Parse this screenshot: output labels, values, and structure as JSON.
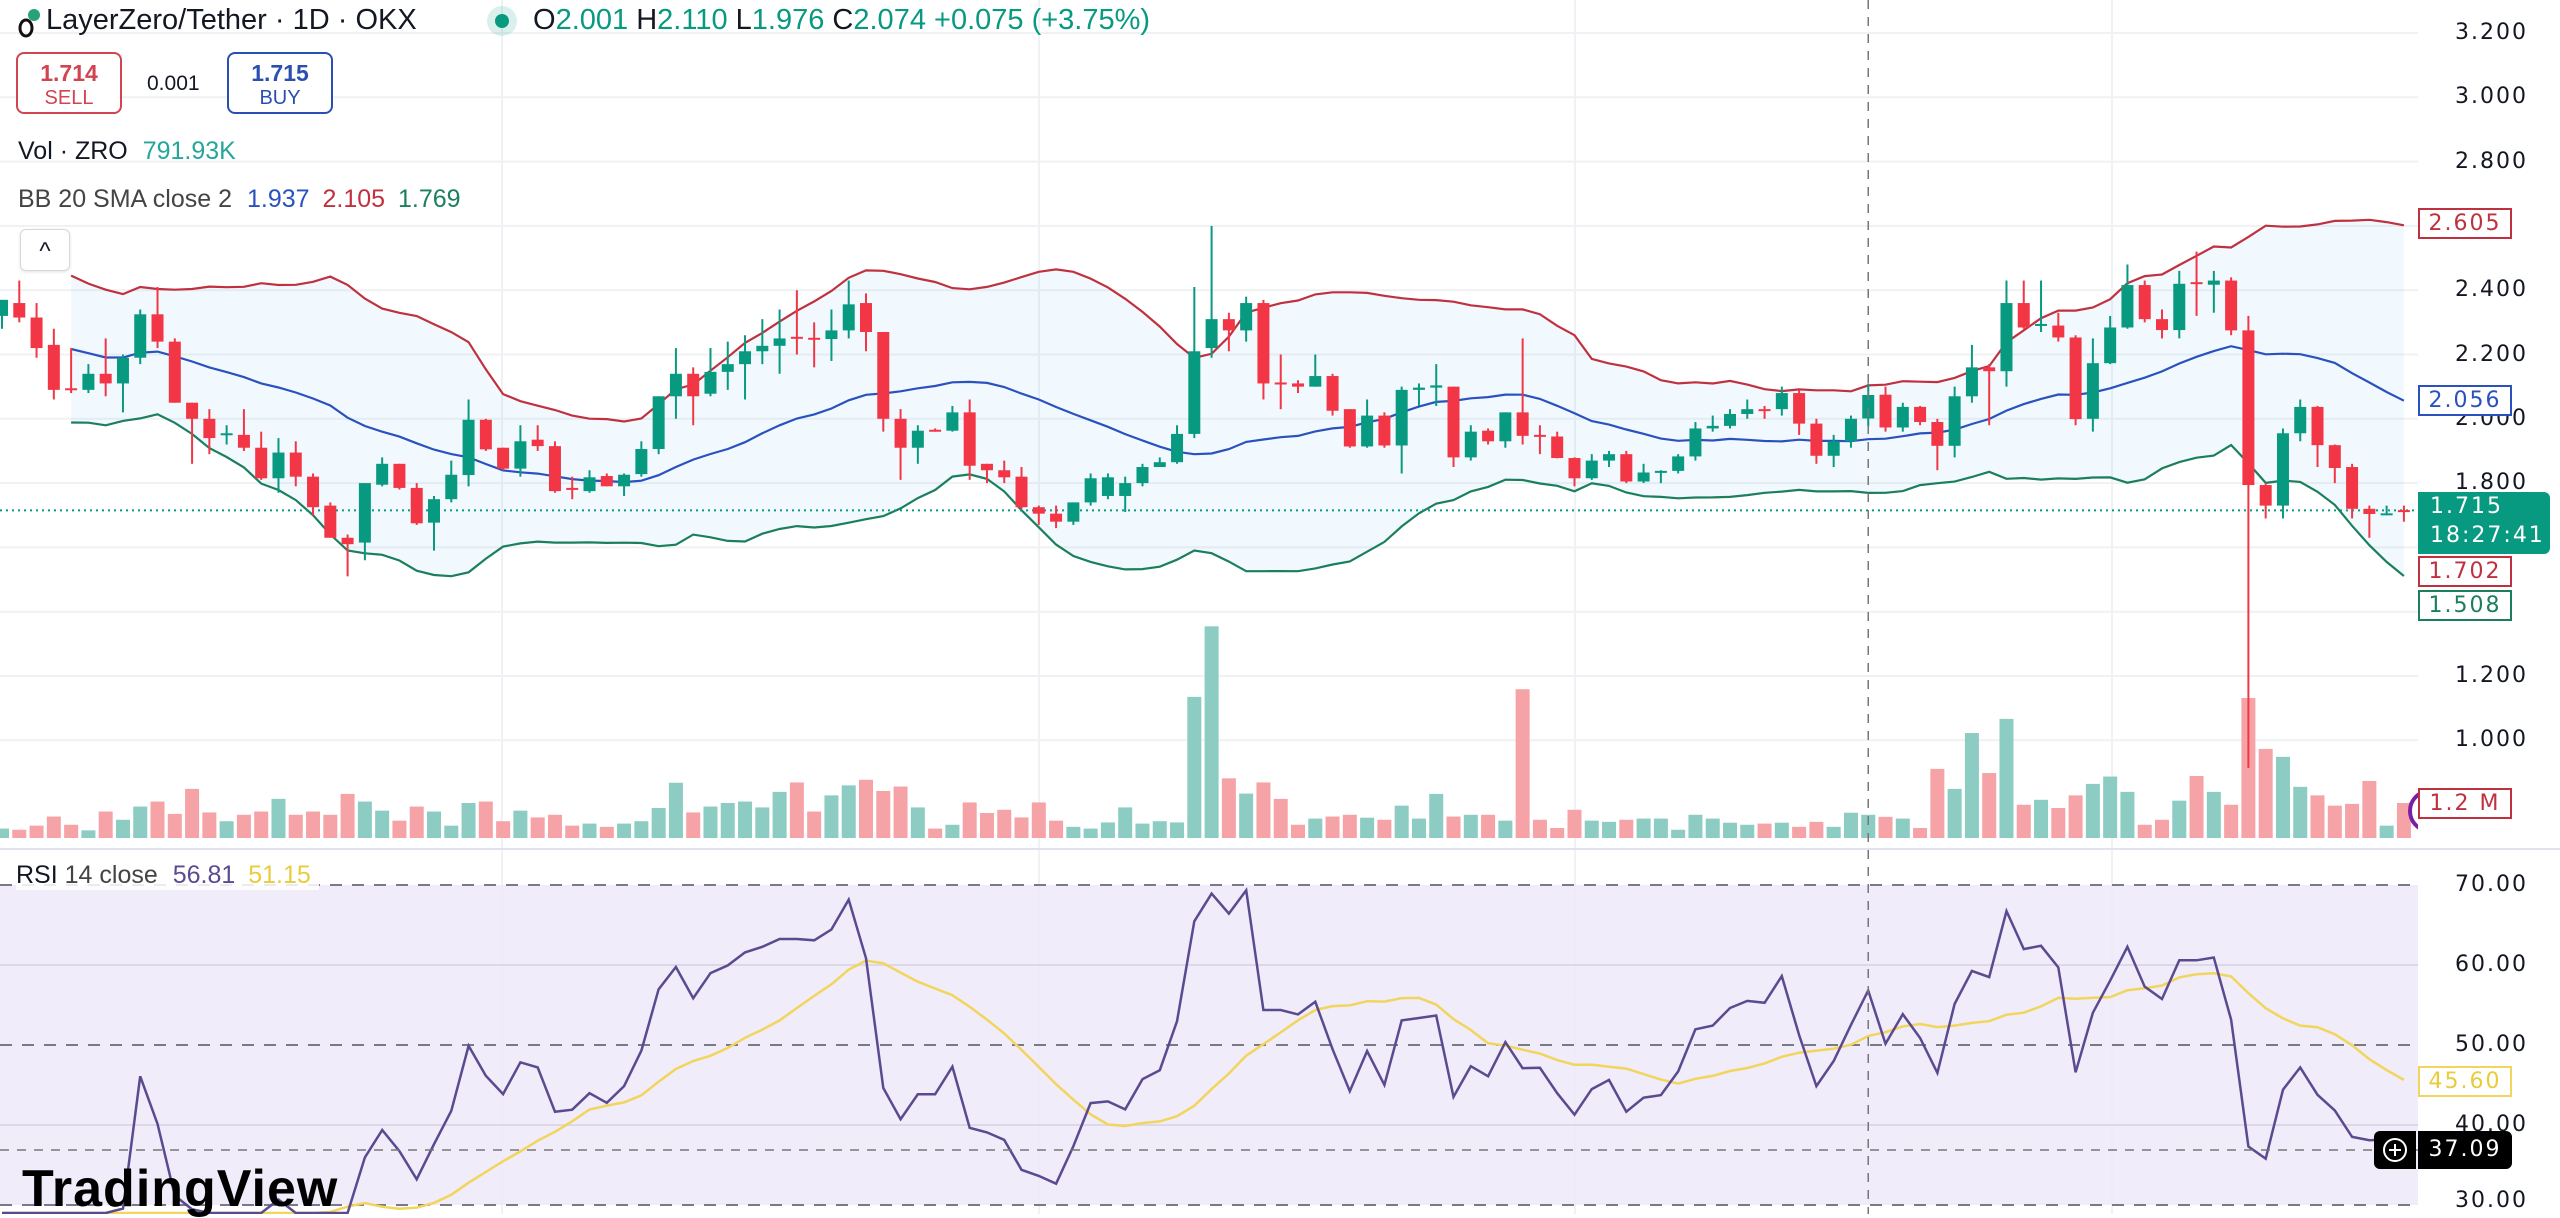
{
  "header": {
    "symbol_title": "LayerZero/Tether · 1D · OKX",
    "ohlc": {
      "o_label": "O",
      "o": "2.001",
      "h_label": "H",
      "h": "2.110",
      "l_label": "L",
      "l": "1.976",
      "c_label": "C",
      "c": "2.074",
      "change": "+0.075 (+3.75%)"
    }
  },
  "trade": {
    "sell_price": "1.714",
    "sell_label": "SELL",
    "spread": "0.001",
    "buy_price": "1.715",
    "buy_label": "BUY"
  },
  "legends": {
    "vol_label": "Vol · ZRO",
    "vol_value": "791.93K",
    "bb_label": "BB 20 SMA close 2",
    "bb_basis": "1.937",
    "bb_upper": "2.105",
    "bb_lower": "1.769",
    "rsi_label": "RSI",
    "rsi_params": "14 close",
    "rsi_value": "56.81",
    "rsi_ma_value": "51.15"
  },
  "collapse_glyph": "^",
  "watermark": "TradingView",
  "colors": {
    "up": "#089981",
    "down": "#f23645",
    "vol_up": "#8cccc2",
    "vol_down": "#f5a3a6",
    "bb_basis": "#2a52be",
    "bb_upper": "#c0313f",
    "bb_lower": "#1b7f5d",
    "rsi": "#5b4a8f",
    "rsi_ma": "#f2d55c"
  },
  "price_axis": {
    "ticks": [
      "3.200",
      "3.000",
      "2.800",
      "2.400",
      "2.200",
      "2.000",
      "1.800",
      "1.200",
      "1.000"
    ]
  },
  "rsi_axis": {
    "ticks": [
      "70.00",
      "60.00",
      "50.00",
      "40.00",
      "30.00"
    ]
  },
  "tags": {
    "bb_upper": "2.605",
    "bb_basis": "2.056",
    "last_price": "1.715",
    "countdown": "18:27:41",
    "bid": "1.702",
    "bb_lower": "1.508",
    "volume": "1.2 M",
    "rsi_ma": "45.60",
    "rsi_cursor": "37.09"
  },
  "chart_data": {
    "type": "candlestick",
    "title": "LayerZero/Tether · 1D · OKX",
    "ylim": [
      0.9,
      3.25
    ],
    "rsi_ylim": [
      30,
      70
    ],
    "candles": [
      [
        2.32,
        2.37,
        2.28,
        2.37
      ],
      [
        2.36,
        2.43,
        2.3,
        2.315
      ],
      [
        2.315,
        2.36,
        2.19,
        2.22
      ],
      [
        2.23,
        2.28,
        2.06,
        2.09
      ],
      [
        2.095,
        2.22,
        2.08,
        2.09
      ],
      [
        2.09,
        2.17,
        2.08,
        2.14
      ],
      [
        2.14,
        2.25,
        2.07,
        2.11
      ],
      [
        2.11,
        2.2,
        2.02,
        2.19
      ],
      [
        2.19,
        2.34,
        2.17,
        2.325
      ],
      [
        2.325,
        2.41,
        2.22,
        2.24
      ],
      [
        2.24,
        2.25,
        2.05,
        2.05
      ],
      [
        2.05,
        2.05,
        1.86,
        2.0
      ],
      [
        2.0,
        2.03,
        1.89,
        1.94
      ],
      [
        1.95,
        1.98,
        1.92,
        1.955
      ],
      [
        1.95,
        2.03,
        1.9,
        1.91
      ],
      [
        1.91,
        1.96,
        1.81,
        1.815
      ],
      [
        1.815,
        1.94,
        1.77,
        1.895
      ],
      [
        1.895,
        1.93,
        1.79,
        1.82
      ],
      [
        1.82,
        1.83,
        1.7,
        1.725
      ],
      [
        1.73,
        1.74,
        1.63,
        1.63
      ],
      [
        1.63,
        1.64,
        1.51,
        1.61
      ],
      [
        1.615,
        1.8,
        1.56,
        1.8
      ],
      [
        1.795,
        1.88,
        1.79,
        1.86
      ],
      [
        1.86,
        1.86,
        1.78,
        1.785
      ],
      [
        1.785,
        1.8,
        1.67,
        1.675
      ],
      [
        1.677,
        1.76,
        1.59,
        1.75
      ],
      [
        1.75,
        1.87,
        1.74,
        1.826
      ],
      [
        1.825,
        2.06,
        1.79,
        1.997
      ],
      [
        1.997,
        2.0,
        1.9,
        1.905
      ],
      [
        1.91,
        1.91,
        1.84,
        1.845
      ],
      [
        1.845,
        1.98,
        1.82,
        1.93
      ],
      [
        1.935,
        1.98,
        1.9,
        1.915
      ],
      [
        1.915,
        1.93,
        1.77,
        1.775
      ],
      [
        1.785,
        1.82,
        1.75,
        1.78
      ],
      [
        1.775,
        1.84,
        1.77,
        1.818
      ],
      [
        1.822,
        1.83,
        1.79,
        1.79
      ],
      [
        1.79,
        1.83,
        1.76,
        1.826
      ],
      [
        1.828,
        1.93,
        1.82,
        1.906
      ],
      [
        1.906,
        2.07,
        1.89,
        2.07
      ],
      [
        2.07,
        2.22,
        2.0,
        2.14
      ],
      [
        2.14,
        2.16,
        1.98,
        2.07
      ],
      [
        2.078,
        2.22,
        2.07,
        2.146
      ],
      [
        2.146,
        2.24,
        2.09,
        2.17
      ],
      [
        2.17,
        2.26,
        2.06,
        2.21
      ],
      [
        2.21,
        2.31,
        2.17,
        2.227
      ],
      [
        2.227,
        2.34,
        2.14,
        2.25
      ],
      [
        2.255,
        2.4,
        2.2,
        2.25
      ],
      [
        2.252,
        2.3,
        2.16,
        2.248
      ],
      [
        2.248,
        2.34,
        2.18,
        2.275
      ],
      [
        2.275,
        2.43,
        2.25,
        2.356
      ],
      [
        2.36,
        2.39,
        2.21,
        2.27
      ],
      [
        2.27,
        2.27,
        1.96,
        2.0
      ],
      [
        2.0,
        2.03,
        1.81,
        1.91
      ],
      [
        1.91,
        1.98,
        1.86,
        1.963
      ],
      [
        1.966,
        1.97,
        1.96,
        1.963
      ],
      [
        1.963,
        2.04,
        1.96,
        2.02
      ],
      [
        2.02,
        2.06,
        1.81,
        1.854
      ],
      [
        1.86,
        1.86,
        1.8,
        1.84
      ],
      [
        1.84,
        1.87,
        1.8,
        1.818
      ],
      [
        1.82,
        1.85,
        1.72,
        1.725
      ],
      [
        1.725,
        1.73,
        1.67,
        1.705
      ],
      [
        1.705,
        1.73,
        1.66,
        1.68
      ],
      [
        1.68,
        1.74,
        1.67,
        1.74
      ],
      [
        1.74,
        1.83,
        1.73,
        1.815
      ],
      [
        1.76,
        1.83,
        1.75,
        1.818
      ],
      [
        1.76,
        1.82,
        1.71,
        1.8
      ],
      [
        1.8,
        1.86,
        1.79,
        1.85
      ],
      [
        1.85,
        1.88,
        1.85,
        1.865
      ],
      [
        1.865,
        1.98,
        1.86,
        1.953
      ],
      [
        1.953,
        2.41,
        1.94,
        2.21
      ],
      [
        2.22,
        2.6,
        2.19,
        2.31
      ],
      [
        2.31,
        2.33,
        2.21,
        2.275
      ],
      [
        2.275,
        2.38,
        2.24,
        2.36
      ],
      [
        2.36,
        2.37,
        2.06,
        2.11
      ],
      [
        2.113,
        2.2,
        2.03,
        2.11
      ],
      [
        2.11,
        2.12,
        2.08,
        2.1
      ],
      [
        2.1,
        2.2,
        2.1,
        2.133
      ],
      [
        2.133,
        2.14,
        2.01,
        2.025
      ],
      [
        2.03,
        2.03,
        1.91,
        1.914
      ],
      [
        1.914,
        2.06,
        1.91,
        2.01
      ],
      [
        2.01,
        2.02,
        1.91,
        1.917
      ],
      [
        1.917,
        2.1,
        1.83,
        2.09
      ],
      [
        2.09,
        2.11,
        2.04,
        2.097
      ],
      [
        2.097,
        2.17,
        2.04,
        2.104
      ],
      [
        2.1,
        2.1,
        1.85,
        1.88
      ],
      [
        1.88,
        1.98,
        1.87,
        1.96
      ],
      [
        1.963,
        1.97,
        1.92,
        1.93
      ],
      [
        1.93,
        2.02,
        1.91,
        2.02
      ],
      [
        2.02,
        2.25,
        1.92,
        1.947
      ],
      [
        1.95,
        1.98,
        1.89,
        1.948
      ],
      [
        1.945,
        1.96,
        1.877,
        1.878
      ],
      [
        1.878,
        1.88,
        1.79,
        1.815
      ],
      [
        1.815,
        1.89,
        1.81,
        1.87
      ],
      [
        1.87,
        1.9,
        1.85,
        1.89
      ],
      [
        1.89,
        1.9,
        1.8,
        1.805
      ],
      [
        1.805,
        1.86,
        1.8,
        1.833
      ],
      [
        1.835,
        1.84,
        1.8,
        1.838
      ],
      [
        1.838,
        1.89,
        1.83,
        1.883
      ],
      [
        1.883,
        1.99,
        1.87,
        1.97
      ],
      [
        1.97,
        2.01,
        1.96,
        1.978
      ],
      [
        1.978,
        2.03,
        1.97,
        2.015
      ],
      [
        2.015,
        2.06,
        2.0,
        2.03
      ],
      [
        2.03,
        2.04,
        2.0,
        2.027
      ],
      [
        2.03,
        2.1,
        2.01,
        2.08
      ],
      [
        2.08,
        2.09,
        1.95,
        1.985
      ],
      [
        1.985,
        2.0,
        1.86,
        1.885
      ],
      [
        1.885,
        1.95,
        1.85,
        1.93
      ],
      [
        1.93,
        2.01,
        1.91,
        2.0
      ],
      [
        2.001,
        2.11,
        1.976,
        2.074
      ],
      [
        2.075,
        2.1,
        1.96,
        1.973
      ],
      [
        1.973,
        2.05,
        1.96,
        2.037
      ],
      [
        2.037,
        2.04,
        1.98,
        1.99
      ],
      [
        1.99,
        2.0,
        1.84,
        1.916
      ],
      [
        1.916,
        2.1,
        1.88,
        2.07
      ],
      [
        2.07,
        2.23,
        2.05,
        2.16
      ],
      [
        2.16,
        2.17,
        1.98,
        2.148
      ],
      [
        2.148,
        2.43,
        2.1,
        2.36
      ],
      [
        2.36,
        2.43,
        2.28,
        2.284
      ],
      [
        2.29,
        2.43,
        2.27,
        2.295
      ],
      [
        2.29,
        2.33,
        2.24,
        2.253
      ],
      [
        2.253,
        2.26,
        1.98,
        1.999
      ],
      [
        2.0,
        2.25,
        1.96,
        2.173
      ],
      [
        2.173,
        2.32,
        2.17,
        2.284
      ],
      [
        2.284,
        2.48,
        2.28,
        2.416
      ],
      [
        2.416,
        2.43,
        2.3,
        2.31
      ],
      [
        2.31,
        2.34,
        2.25,
        2.276
      ],
      [
        2.276,
        2.46,
        2.25,
        2.42
      ],
      [
        2.425,
        2.52,
        2.32,
        2.42
      ],
      [
        2.417,
        2.46,
        2.33,
        2.43
      ],
      [
        2.43,
        2.44,
        2.26,
        2.275
      ],
      [
        2.275,
        2.32,
        0.914,
        1.794
      ],
      [
        1.794,
        1.8,
        1.69,
        1.73
      ],
      [
        1.73,
        1.97,
        1.69,
        1.955
      ],
      [
        1.955,
        2.06,
        1.93,
        2.037
      ],
      [
        2.037,
        2.04,
        1.85,
        1.918
      ],
      [
        1.918,
        1.92,
        1.8,
        1.847
      ],
      [
        1.85,
        1.86,
        1.69,
        1.72
      ],
      [
        1.72,
        1.73,
        1.63,
        1.704
      ],
      [
        1.704,
        1.73,
        1.7,
        1.706
      ],
      [
        1.716,
        1.73,
        1.68,
        1.715
      ]
    ],
    "volume_millions": [
      0.32,
      0.28,
      0.42,
      0.73,
      0.45,
      0.26,
      0.9,
      0.62,
      1.07,
      1.24,
      0.82,
      1.67,
      0.87,
      0.57,
      0.79,
      0.9,
      1.33,
      0.79,
      0.9,
      0.79,
      1.5,
      1.24,
      0.93,
      0.59,
      1.07,
      0.9,
      0.42,
      1.19,
      1.24,
      0.57,
      0.93,
      0.7,
      0.79,
      0.42,
      0.49,
      0.38,
      0.49,
      0.57,
      1.02,
      1.88,
      0.87,
      1.07,
      1.19,
      1.24,
      1.04,
      1.57,
      1.89,
      0.9,
      1.45,
      1.79,
      1.98,
      1.6,
      1.75,
      1.04,
      0.32,
      0.45,
      1.21,
      0.85,
      0.96,
      0.7,
      1.21,
      0.59,
      0.38,
      0.32,
      0.53,
      1.04,
      0.49,
      0.57,
      0.53,
      4.8,
      7.2,
      2.03,
      1.51,
      1.89,
      1.33,
      0.45,
      0.66,
      0.73,
      0.79,
      0.69,
      0.62,
      1.1,
      0.66,
      1.5,
      0.73,
      0.79,
      0.79,
      0.59,
      5.06,
      0.62,
      0.34,
      0.96,
      0.59,
      0.55,
      0.62,
      0.66,
      0.66,
      0.28,
      0.79,
      0.66,
      0.52,
      0.45,
      0.49,
      0.52,
      0.38,
      0.55,
      0.38,
      0.86,
      0.79,
      0.72,
      0.66,
      0.34,
      2.35,
      1.67,
      3.57,
      2.21,
      4.05,
      1.13,
      1.3,
      1.02,
      1.45,
      1.84,
      2.09,
      1.57,
      0.45,
      0.62,
      1.27,
      2.11,
      1.57,
      1.13,
      4.76,
      3.03,
      2.76,
      1.74,
      1.45,
      1.1,
      1.16,
      1.94,
      0.42,
      1.19
    ],
    "bb_period": 20,
    "bb_mult": 2,
    "rsi_period": 14,
    "rsi_ma_period": 14,
    "crosshair_index": 108,
    "current_price": 1.715
  }
}
